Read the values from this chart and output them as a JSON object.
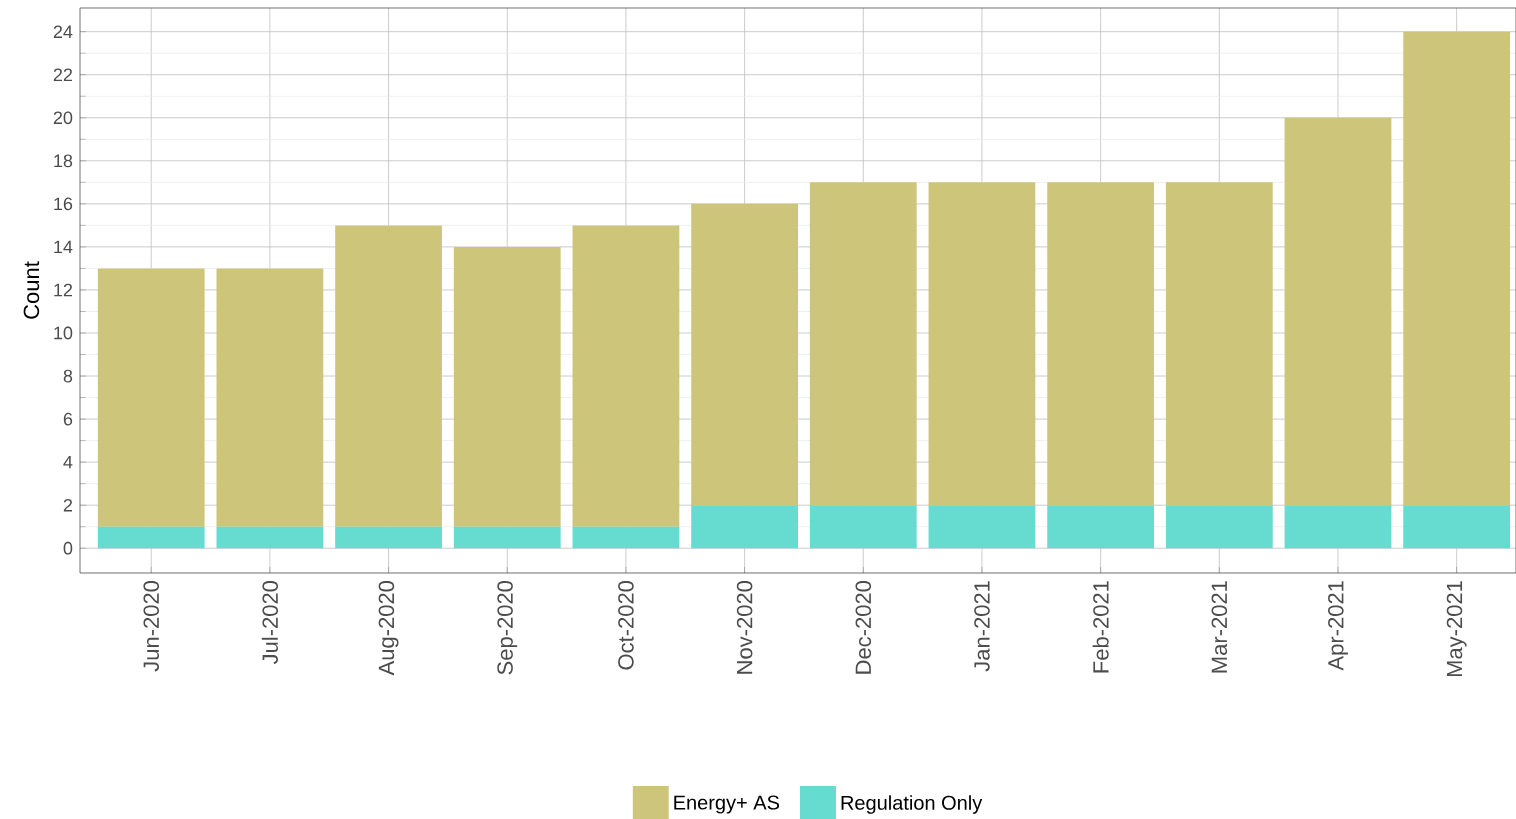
{
  "chart_data": {
    "type": "bar",
    "stacked": true,
    "ylabel": "Count",
    "categories": [
      "Jun-2020",
      "Jul-2020",
      "Aug-2020",
      "Sep-2020",
      "Oct-2020",
      "Nov-2020",
      "Dec-2020",
      "Jan-2021",
      "Feb-2021",
      "Mar-2021",
      "Apr-2021",
      "May-2021"
    ],
    "series": [
      {
        "name": "Regulation Only",
        "color": "#66dbd0",
        "values": [
          1,
          1,
          1,
          1,
          1,
          2,
          2,
          2,
          2,
          2,
          2,
          2
        ]
      },
      {
        "name": "Energy+ AS",
        "color": "#cdc67a",
        "values": [
          12,
          12,
          14,
          13,
          14,
          14,
          15,
          15,
          15,
          15,
          18,
          22
        ]
      }
    ],
    "ylim": [
      -1.15,
      25.1
    ],
    "yticks": [
      0,
      2,
      4,
      6,
      8,
      10,
      12,
      14,
      16,
      18,
      20,
      22,
      24
    ],
    "grid": true,
    "legend": "bottom"
  }
}
